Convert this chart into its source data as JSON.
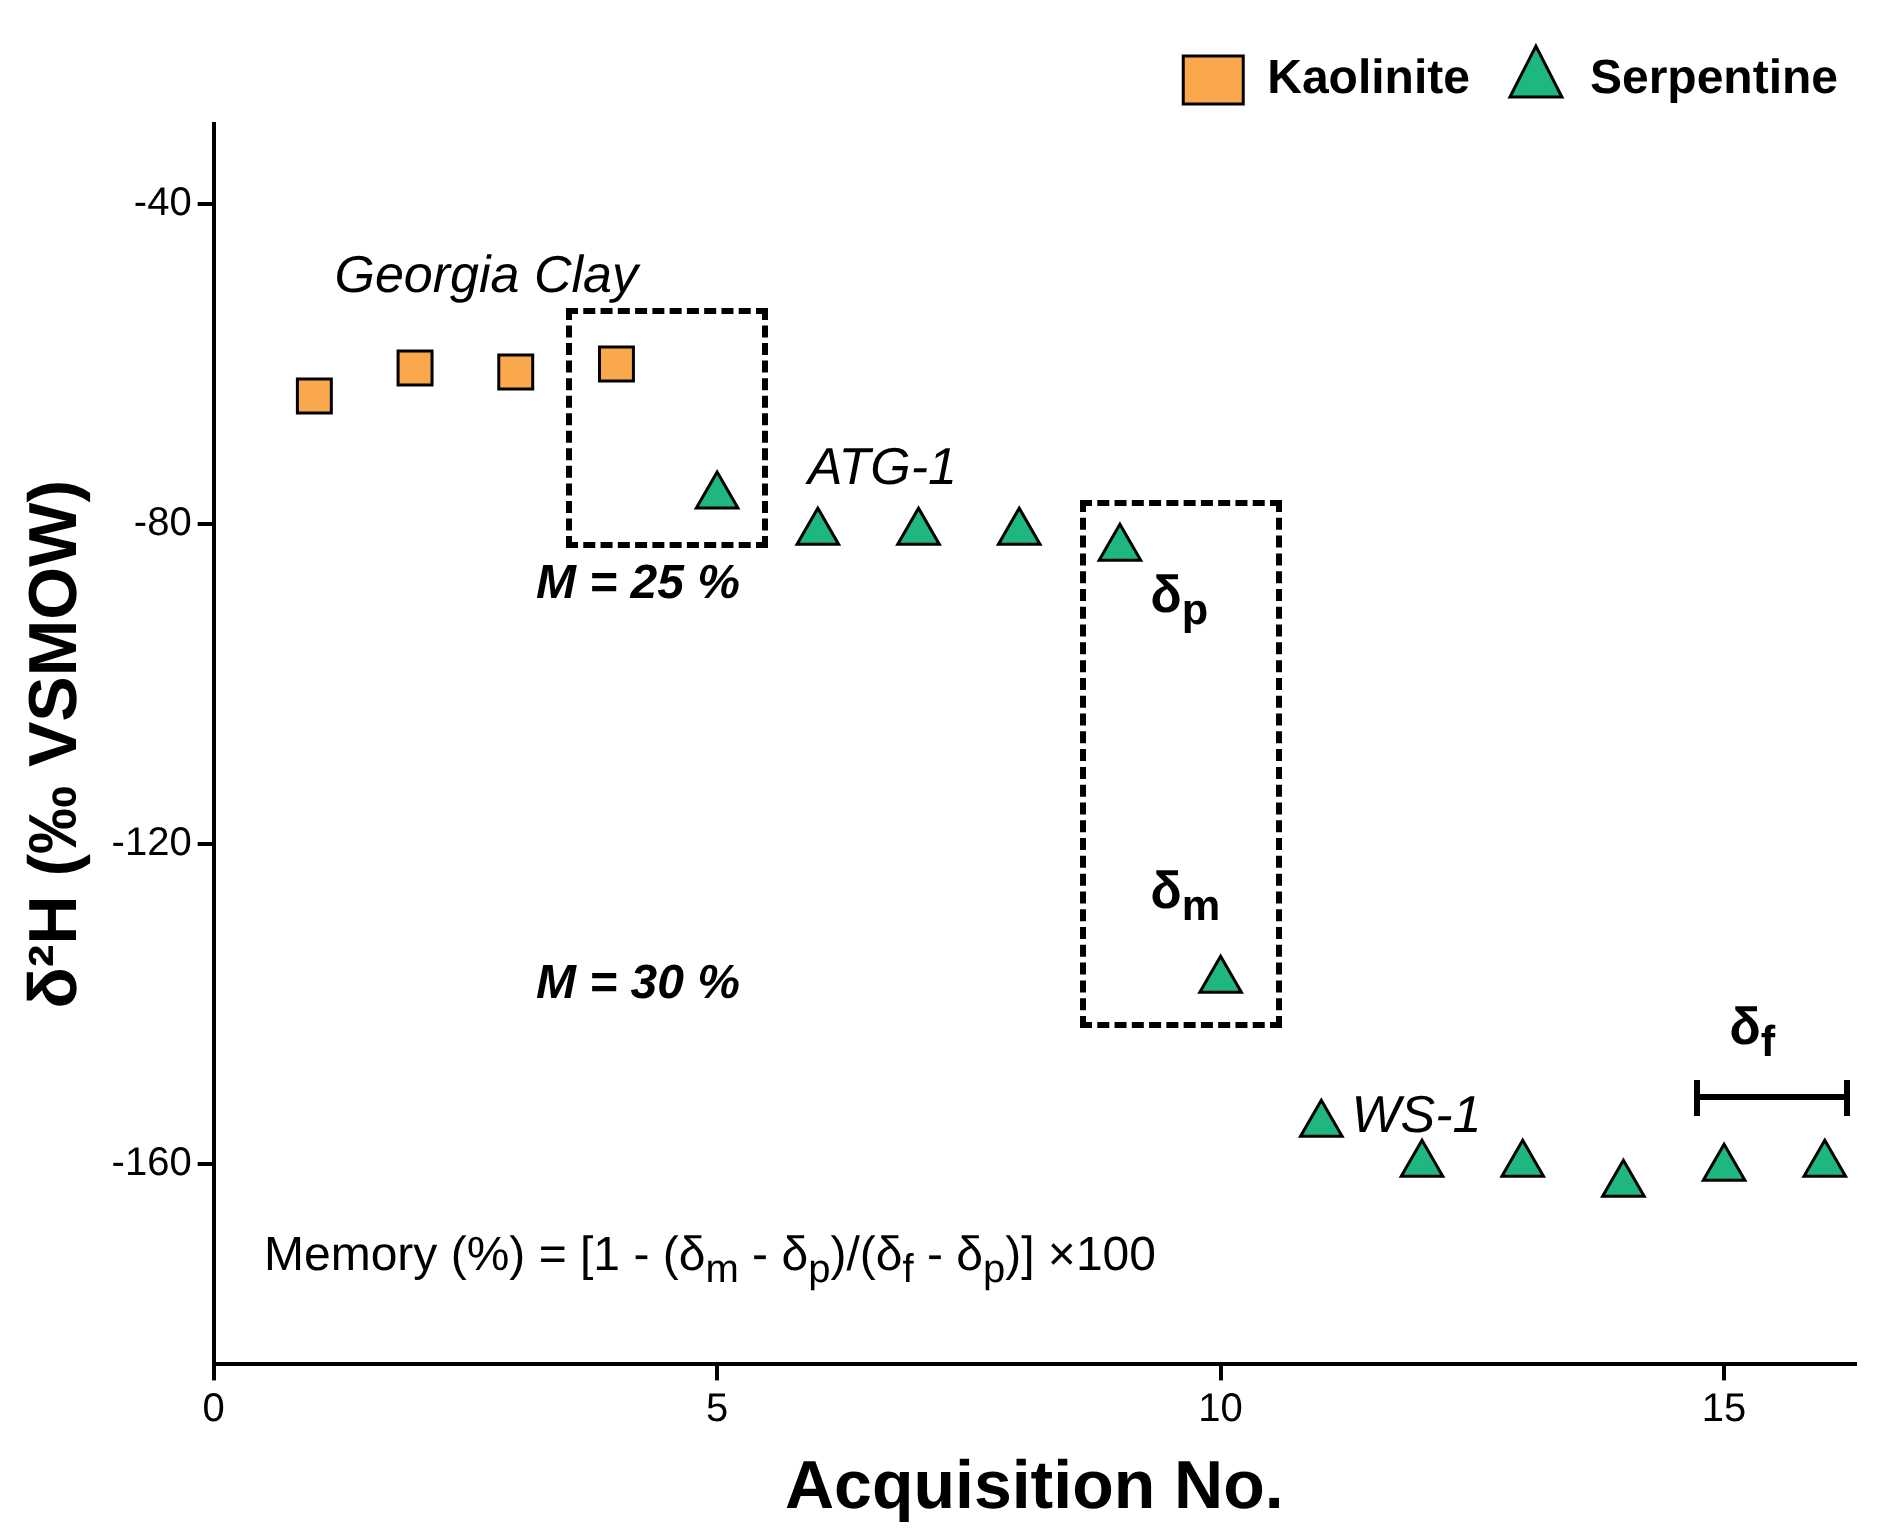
{
  "chart_data": {
    "type": "scatter",
    "xlabel": "Acquisition No.",
    "ylabel": "δ²H (‰ VSMOW)",
    "xlim": [
      0,
      16.3
    ],
    "xticks": [
      0,
      5,
      10,
      15
    ],
    "ylim": [
      -185,
      -30
    ],
    "yticks": [
      -40,
      -80,
      -120,
      -160
    ],
    "grid": false,
    "legend": "top right",
    "series": [
      {
        "name": "Kaolinite",
        "color": "#f9a94b",
        "marker": "square",
        "x": [
          1,
          2,
          3,
          4
        ],
        "values": [
          -64,
          -60.5,
          -61,
          -60
        ]
      },
      {
        "name": "Serpentine",
        "color": "#1db77f",
        "marker": "triangle",
        "x": [
          5,
          6,
          7,
          8,
          9,
          10,
          11,
          12,
          13,
          14,
          15,
          16
        ],
        "values": [
          -76.5,
          -81,
          -81,
          -81,
          -83,
          -137,
          -155,
          -160,
          -160,
          -162.5,
          -160.5,
          -160
        ]
      }
    ],
    "annotations": [
      "Georgia Clay",
      "ATG-1",
      "WS-1",
      "M = 25 %",
      "M = 30 %",
      "δ$_{p}$",
      "δ$_{m}$",
      "δ$_{f}$",
      "Memory (%) = [1 - (δ$_{m}$ - δ$_{p}$)/(δ$_{f}$ - δ$_{p}$)] ×100"
    ]
  }
}
